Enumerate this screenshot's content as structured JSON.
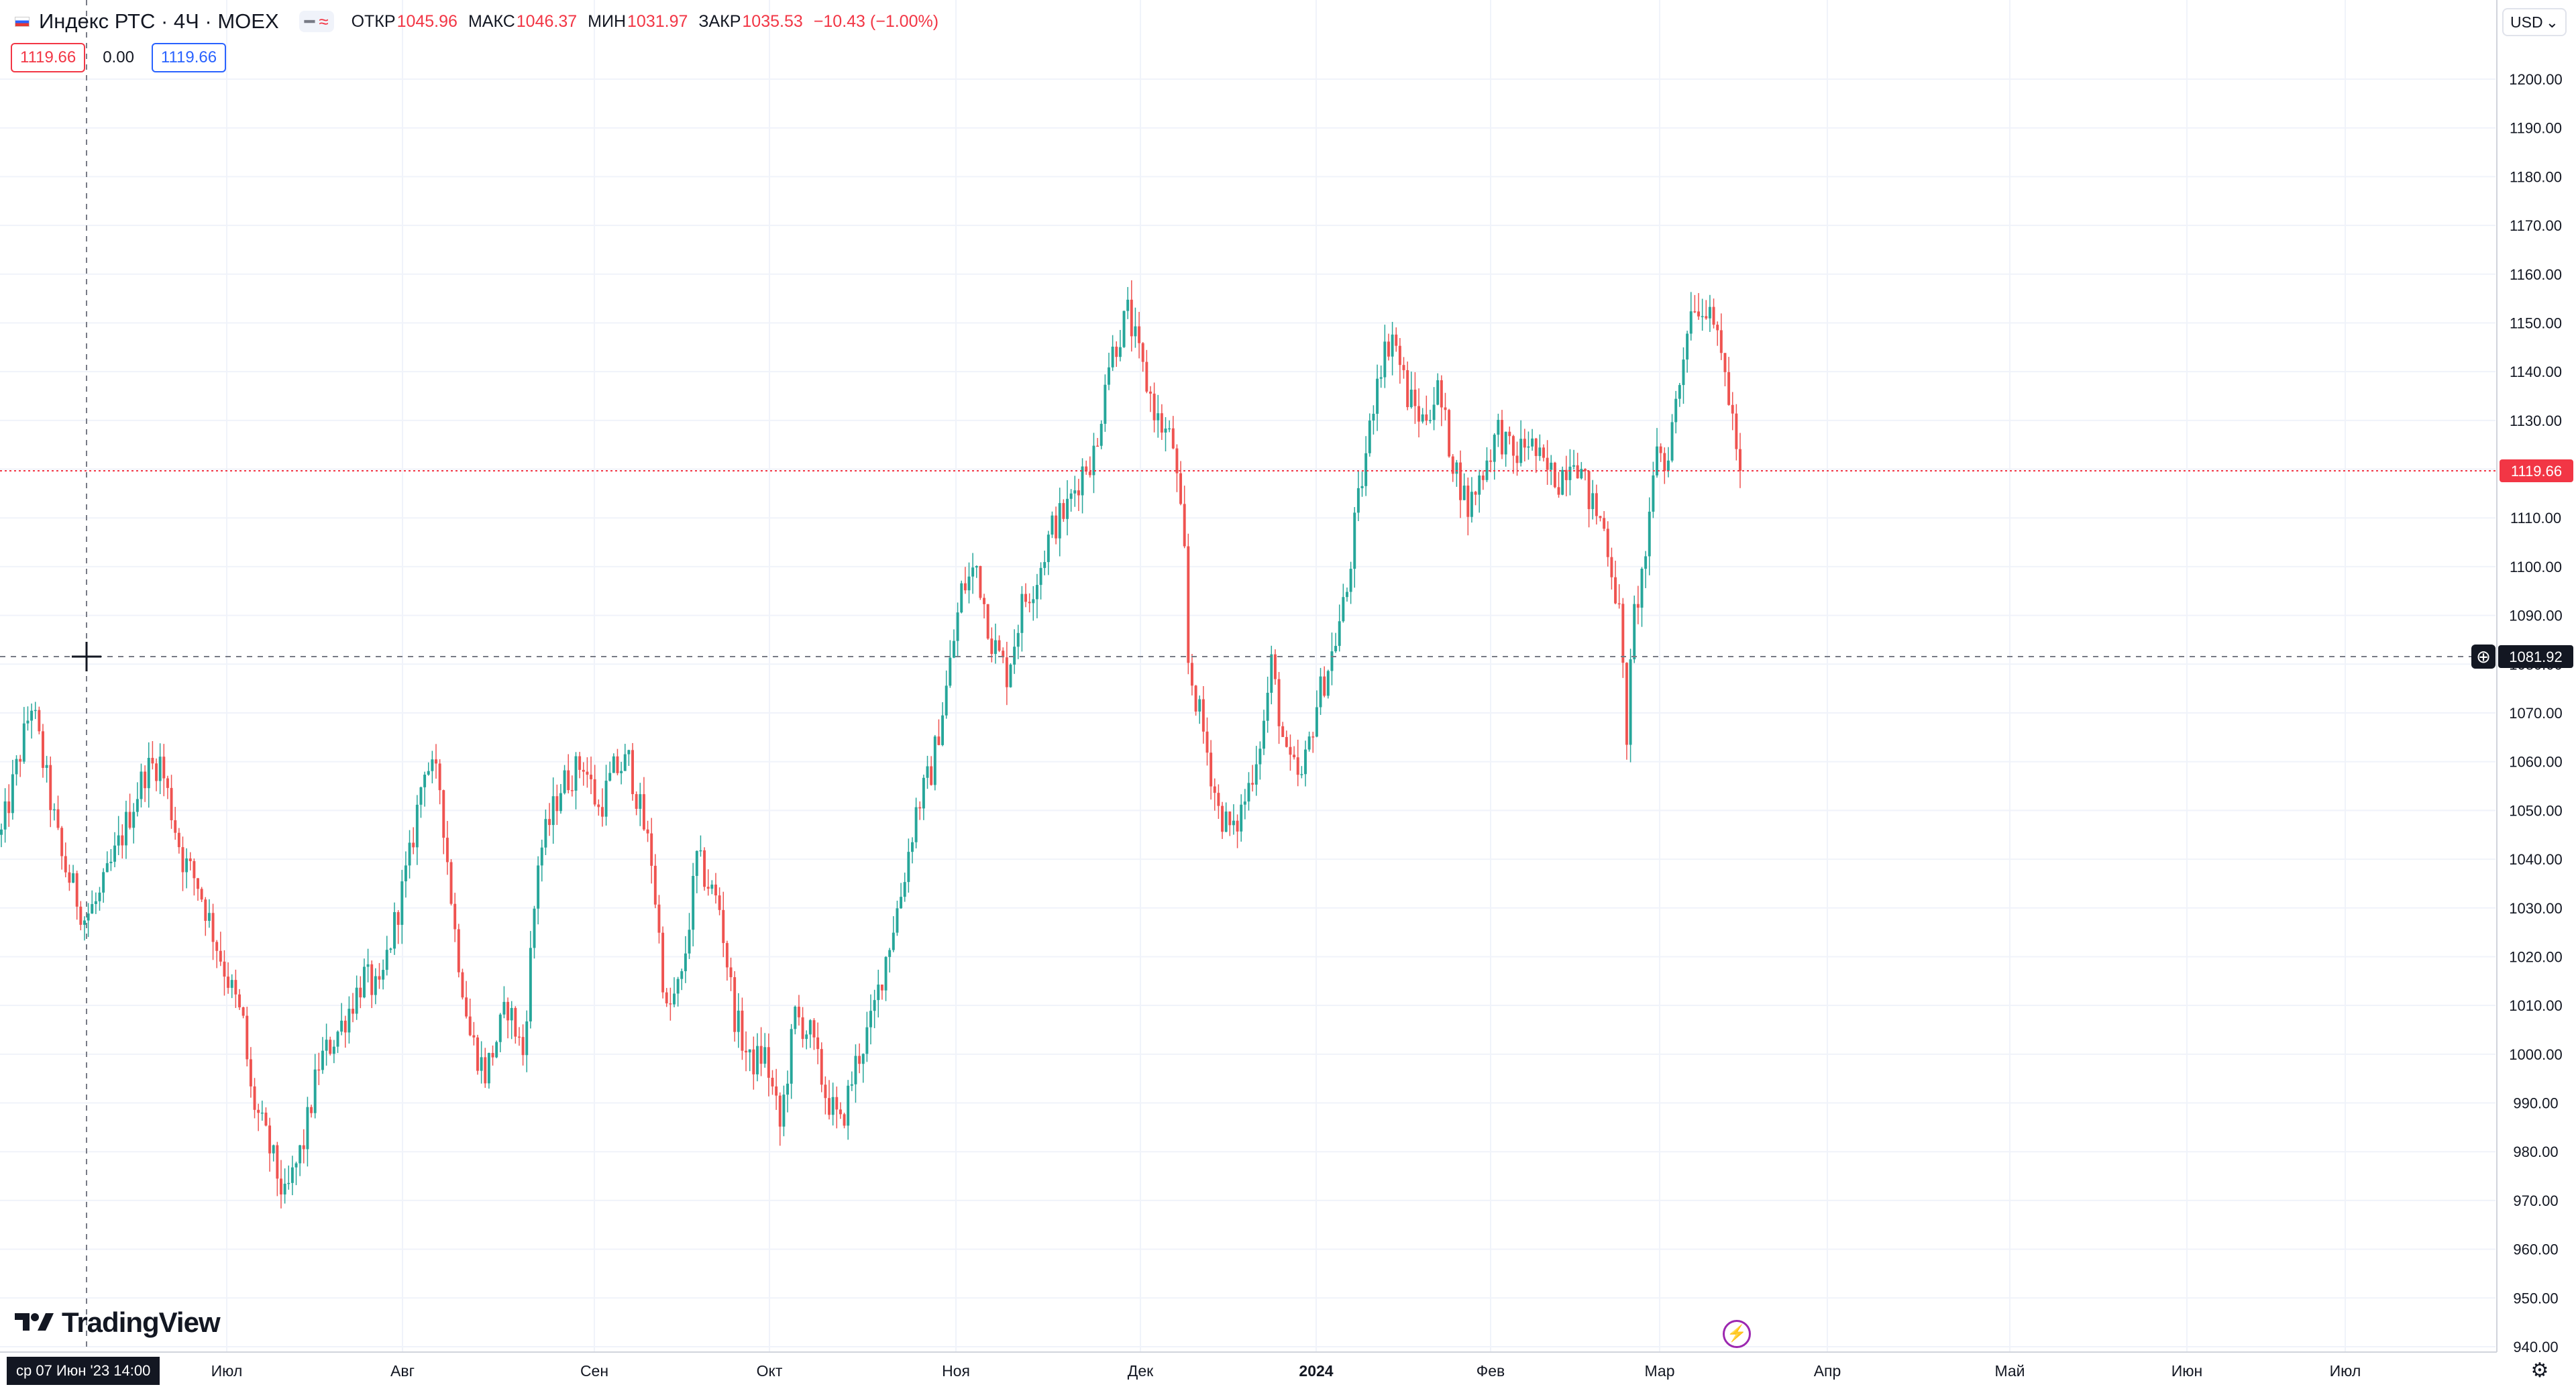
{
  "legend": {
    "title": "Индекс РТС · 4Ч · MOEX",
    "open_label": "ОТКР",
    "open_value": "1045.96",
    "high_label": "МАКС",
    "high_value": "1046.37",
    "low_label": "МИН",
    "low_value": "1031.97",
    "close_label": "ЗАКР",
    "close_value": "1035.53",
    "change": "−10.43 (−1.00%)",
    "sell_price": "1119.66",
    "spread": "0.00",
    "buy_price": "1119.66"
  },
  "currency": "USD",
  "crosshair": {
    "price_label": "1081.92",
    "time_label": "ср 07 Июн '23   14:00"
  },
  "last_price_label": "1119.66",
  "brand": "TradingView",
  "colors": {
    "up": "#26a69a",
    "down": "#ef5350",
    "grid": "#f0f3fa",
    "last_price": "#f23645",
    "text": "#131722"
  },
  "chart_data": {
    "type": "candlestick",
    "title": "Индекс РТС · 4Ч · MOEX",
    "interval": "4Ч",
    "y_axis": {
      "side": "right",
      "ylim": [
        940,
        1200
      ],
      "ticks": [
        "940.00",
        "950.00",
        "960.00",
        "970.00",
        "980.00",
        "990.00",
        "1000.00",
        "1010.00",
        "1020.00",
        "1030.00",
        "1040.00",
        "1050.00",
        "1060.00",
        "1070.00",
        "1080.00",
        "1090.00",
        "1100.00",
        "1110.00",
        "1120.00",
        "1130.00",
        "1140.00",
        "1150.00",
        "1160.00",
        "1170.00",
        "1180.00",
        "1190.00",
        "1200.00"
      ]
    },
    "x_axis": {
      "ticks": [
        "Июл",
        "Авг",
        "Сен",
        "Окт",
        "Ноя",
        "Дек",
        "2024",
        "Фев",
        "Мар",
        "Апр",
        "Май",
        "Июн",
        "Июл"
      ]
    },
    "grid": true,
    "last_price": 1119.66,
    "series": [
      {
        "name": "Индекс РТС",
        "path": [
          [
            0,
            1045
          ],
          [
            8,
            1072
          ],
          [
            16,
            1040
          ],
          [
            22,
            1028
          ],
          [
            26,
            1032
          ],
          [
            38,
            1058
          ],
          [
            42,
            1060
          ],
          [
            48,
            1040
          ],
          [
            52,
            1035
          ],
          [
            58,
            1020
          ],
          [
            64,
            1006
          ],
          [
            66,
            992
          ],
          [
            72,
            978
          ],
          [
            75,
            970
          ],
          [
            80,
            982
          ],
          [
            84,
            998
          ],
          [
            90,
            1006
          ],
          [
            96,
            1016
          ],
          [
            100,
            1012
          ],
          [
            102,
            1020
          ],
          [
            108,
            1040
          ],
          [
            112,
            1060
          ],
          [
            116,
            1055
          ],
          [
            120,
            1025
          ],
          [
            124,
            1004
          ],
          [
            128,
            996
          ],
          [
            134,
            1010
          ],
          [
            138,
            1000
          ],
          [
            142,
            1040
          ],
          [
            148,
            1055
          ],
          [
            154,
            1060
          ],
          [
            158,
            1050
          ],
          [
            162,
            1058
          ],
          [
            166,
            1060
          ],
          [
            172,
            1040
          ],
          [
            176,
            1008
          ],
          [
            180,
            1015
          ],
          [
            184,
            1040
          ],
          [
            190,
            1030
          ],
          [
            194,
            1008
          ],
          [
            198,
            998
          ],
          [
            202,
            1000
          ],
          [
            206,
            985
          ],
          [
            210,
            1008
          ],
          [
            214,
            1004
          ],
          [
            218,
            992
          ],
          [
            222,
            985
          ],
          [
            226,
            998
          ],
          [
            230,
            1006
          ],
          [
            234,
            1020
          ],
          [
            238,
            1033
          ],
          [
            242,
            1050
          ],
          [
            246,
            1058
          ],
          [
            250,
            1075
          ],
          [
            254,
            1095
          ],
          [
            258,
            1100
          ],
          [
            262,
            1085
          ],
          [
            266,
            1078
          ],
          [
            270,
            1092
          ],
          [
            274,
            1098
          ],
          [
            278,
            1108
          ],
          [
            282,
            1112
          ],
          [
            286,
            1120
          ],
          [
            290,
            1124
          ],
          [
            292,
            1140
          ],
          [
            296,
            1148
          ],
          [
            298,
            1152
          ],
          [
            302,
            1140
          ],
          [
            306,
            1130
          ],
          [
            310,
            1125
          ],
          [
            313,
            1102
          ],
          [
            314,
            1080
          ],
          [
            318,
            1066
          ],
          [
            322,
            1050
          ],
          [
            326,
            1045
          ],
          [
            330,
            1055
          ],
          [
            334,
            1068
          ],
          [
            336,
            1080
          ],
          [
            340,
            1060
          ],
          [
            344,
            1056
          ],
          [
            348,
            1072
          ],
          [
            352,
            1082
          ],
          [
            356,
            1095
          ],
          [
            358,
            1108
          ],
          [
            362,
            1128
          ],
          [
            364,
            1140
          ],
          [
            368,
            1148
          ],
          [
            372,
            1135
          ],
          [
            376,
            1130
          ],
          [
            380,
            1136
          ],
          [
            384,
            1122
          ],
          [
            388,
            1112
          ],
          [
            392,
            1120
          ],
          [
            396,
            1128
          ],
          [
            400,
            1122
          ],
          [
            404,
            1126
          ],
          [
            408,
            1120
          ],
          [
            412,
            1118
          ],
          [
            416,
            1124
          ],
          [
            420,
            1114
          ],
          [
            424,
            1108
          ],
          [
            426,
            1100
          ],
          [
            428,
            1090
          ],
          [
            430,
            1066
          ],
          [
            432,
            1090
          ],
          [
            434,
            1098
          ],
          [
            436,
            1108
          ],
          [
            438,
            1126
          ],
          [
            440,
            1120
          ],
          [
            444,
            1138
          ],
          [
            446,
            1150
          ],
          [
            448,
            1155
          ],
          [
            450,
            1152
          ],
          [
            452,
            1156
          ],
          [
            454,
            1145
          ],
          [
            456,
            1140
          ],
          [
            458,
            1130
          ],
          [
            460,
            1119.66
          ]
        ]
      }
    ]
  }
}
